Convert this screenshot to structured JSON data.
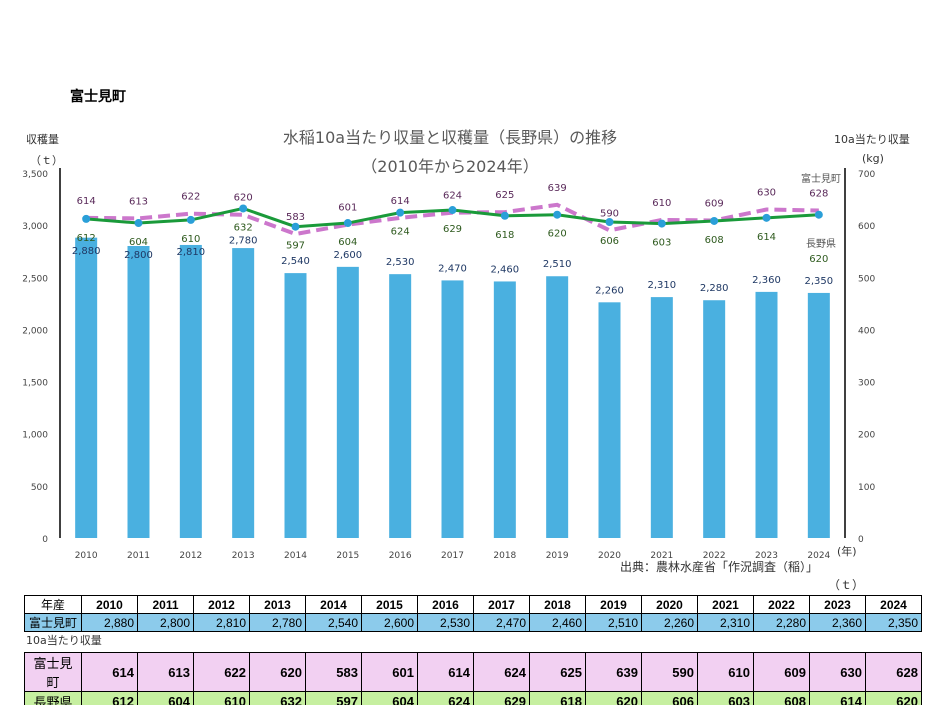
{
  "page_title": "富士見町",
  "chart_data": {
    "type": "bar+line",
    "title": "水稲10a当たり収量と収穫量（長野県）の推移",
    "subtitle": "（2010年から2024年）",
    "ylabel_left": "収穫量",
    "yunit_left": "（ｔ）",
    "ylabel_right": "10a当たり収量",
    "yunit_right": "(kg)",
    "xunit": "(年)",
    "ylim_left": [
      0,
      3500
    ],
    "yticks_left": [
      "0",
      "500",
      "1,000",
      "1,500",
      "2,000",
      "2,500",
      "3,000",
      "3,500"
    ],
    "ylim_right": [
      0,
      700
    ],
    "yticks_right": [
      "0",
      "100",
      "200",
      "300",
      "400",
      "500",
      "600",
      "700"
    ],
    "categories": [
      "2010",
      "2011",
      "2012",
      "2013",
      "2014",
      "2015",
      "2016",
      "2017",
      "2018",
      "2019",
      "2020",
      "2021",
      "2022",
      "2023",
      "2024"
    ],
    "bars": {
      "values": [
        2880,
        2800,
        2810,
        2780,
        2540,
        2600,
        2530,
        2470,
        2460,
        2510,
        2260,
        2310,
        2280,
        2360,
        2350
      ],
      "labels": [
        "2,880",
        "2,800",
        "2,810",
        "2,780",
        "2,540",
        "2,600",
        "2,530",
        "2,470",
        "2,460",
        "2,510",
        "2,260",
        "2,310",
        "2,280",
        "2,360",
        "2,350"
      ],
      "color": "#4AB0E0"
    },
    "series": [
      {
        "name": "富士見町",
        "values": [
          614,
          613,
          622,
          620,
          583,
          601,
          614,
          624,
          625,
          639,
          590,
          610,
          609,
          630,
          628
        ],
        "color": "#CC77CC",
        "style": "dashed"
      },
      {
        "name": "長野県",
        "values": [
          612,
          604,
          610,
          632,
          597,
          604,
          624,
          629,
          618,
          620,
          606,
          603,
          608,
          614,
          620
        ],
        "color": "#1A9A3A",
        "marker": "#2A9FD8",
        "style": "solid"
      }
    ],
    "grid": false,
    "source": "出典：農林水産省「作況調査（稲）」"
  },
  "table": {
    "unit": "（ｔ）",
    "header": "年産",
    "harvest_label": "富士見町",
    "yield_title": "10a当たり収量",
    "yield_rows": [
      {
        "label": "富士見町",
        "color": "#F2D0F2"
      },
      {
        "label": "長野県",
        "color": "#C6EFA0"
      }
    ],
    "harvest_color": "#8CCBEB"
  }
}
